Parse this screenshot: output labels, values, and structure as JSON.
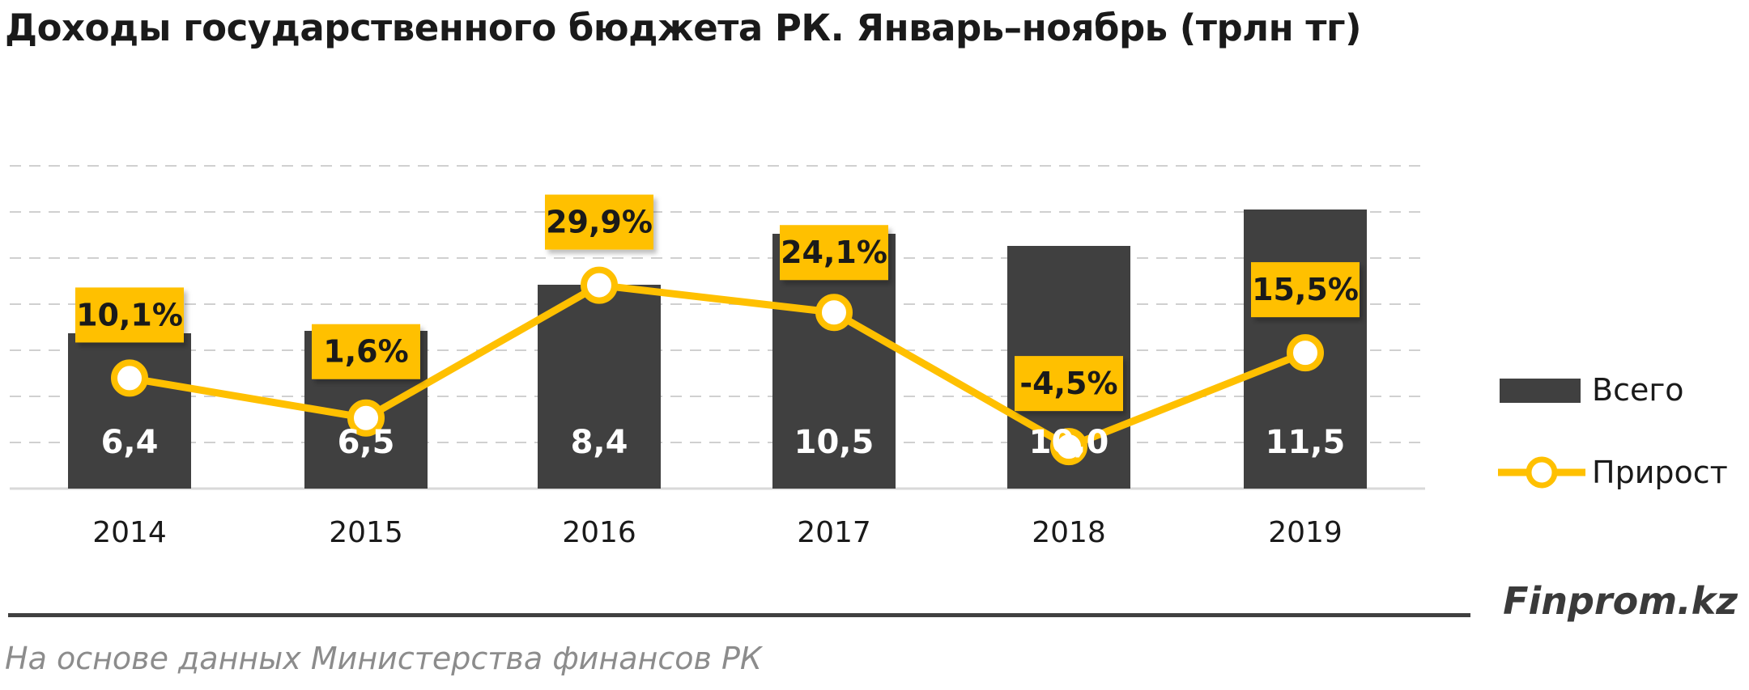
{
  "title": "Доходы государственного бюджета РК. Январь–ноябрь (трлн тг)",
  "brand": "Finprom.kz",
  "source": "На основе данных Министерства финансов РК",
  "colors": {
    "bar": "#404040",
    "line": "#FFC000",
    "grid": "#d0d0d0",
    "bar_label": "#ffffff",
    "axis_text": "#1a1a1a"
  },
  "chart_data": {
    "type": "bar",
    "categories": [
      "2014",
      "2015",
      "2016",
      "2017",
      "2018",
      "2019"
    ],
    "series": [
      {
        "name": "Всего",
        "type": "bar",
        "values": [
          6.4,
          6.5,
          8.4,
          10.5,
          10.0,
          11.5
        ],
        "labels": [
          "6,4",
          "6,5",
          "8,4",
          "10,5",
          "10,0",
          "11,5"
        ]
      },
      {
        "name": "Прирост",
        "type": "line",
        "axis": "secondary",
        "values": [
          10.1,
          1.6,
          29.9,
          24.1,
          -4.5,
          15.5
        ],
        "labels": [
          "10,1%",
          "1,6%",
          "29,9%",
          "24,1%",
          "-4,5%",
          "15,5%"
        ]
      }
    ],
    "ylim": [
      0,
      16
    ],
    "y2lim": [
      -20,
      40
    ],
    "grid": true,
    "legend_position": "right"
  }
}
